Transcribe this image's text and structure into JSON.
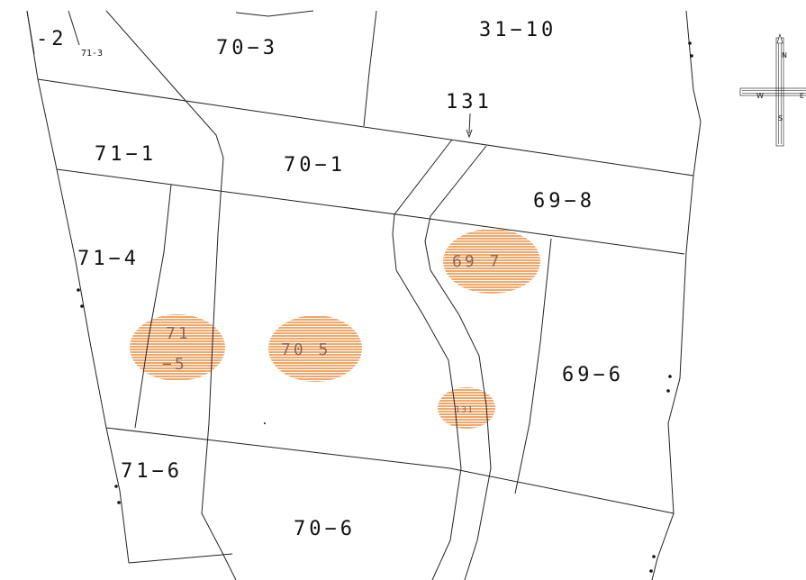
{
  "parcels": {
    "p_2": "-2",
    "p_71_3": "71-3",
    "p_70_3": "70−3",
    "p_31_10": "31−10",
    "p_131": "131",
    "p_71_1": "71−1",
    "p_70_1": "70−1",
    "p_69_8": "69−8",
    "p_71_4": "71−4",
    "p_69_6": "69−6",
    "p_71_6": "71−6",
    "p_70_6": "70−6"
  },
  "highlighted_parcels": {
    "h_69_7": "69 7",
    "h_71_5_top": "71",
    "h_71_5_bottom": "−5",
    "h_70_5": "70 5",
    "h_road": "131"
  },
  "compass": {
    "north": "N",
    "south": "S",
    "west": "W",
    "east": "E"
  },
  "colors": {
    "highlight": "#f2a76a",
    "line": "#222222",
    "background": "#ffffff"
  }
}
